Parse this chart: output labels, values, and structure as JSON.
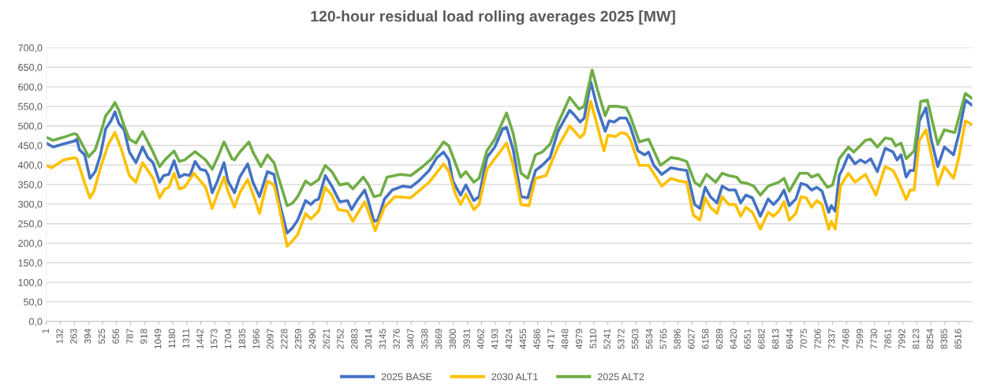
{
  "chart_data": {
    "type": "line",
    "title": "120-hour residual load rolling averages 2025 [MW]",
    "xlim": [
      1,
      8641
    ],
    "xticks": [
      1,
      132,
      263,
      394,
      525,
      656,
      787,
      918,
      1049,
      1180,
      1311,
      1442,
      1573,
      1704,
      1835,
      1966,
      2097,
      2228,
      2359,
      2490,
      2621,
      2752,
      2883,
      3014,
      3145,
      3276,
      3407,
      3538,
      3669,
      3800,
      3931,
      4062,
      4193,
      4324,
      4455,
      4586,
      4717,
      4848,
      4979,
      5110,
      5241,
      5372,
      5503,
      5634,
      5765,
      5896,
      6027,
      6158,
      6289,
      6420,
      6551,
      6682,
      6813,
      6944,
      7075,
      7206,
      7337,
      7468,
      7599,
      7730,
      7861,
      7992,
      8123,
      8254,
      8385,
      8516
    ],
    "ylim": [
      0,
      700
    ],
    "yticks": [
      {
        "value": 0,
        "label": "0,0"
      },
      {
        "value": 50,
        "label": "50,0"
      },
      {
        "value": 100,
        "label": "100,0"
      },
      {
        "value": 150,
        "label": "150,0"
      },
      {
        "value": 200,
        "label": "200,0"
      },
      {
        "value": 250,
        "label": "250,0"
      },
      {
        "value": 300,
        "label": "300,0"
      },
      {
        "value": 350,
        "label": "350,0"
      },
      {
        "value": 400,
        "label": "400,0"
      },
      {
        "value": 450,
        "label": "450,0"
      },
      {
        "value": 500,
        "label": "500,0"
      },
      {
        "value": 550,
        "label": "550,0"
      },
      {
        "value": 600,
        "label": "600,0"
      },
      {
        "value": 650,
        "label": "650,0"
      },
      {
        "value": 700,
        "label": "700,0"
      }
    ],
    "grid": "y",
    "legend": "bottom",
    "marker": "none",
    "line_style": "solid",
    "series": [
      {
        "name": "2025 BASE",
        "color": "#4472c4",
        "x": [
          1,
          65,
          163,
          261,
          285,
          310,
          359,
          408,
          457,
          506,
          555,
          604,
          641,
          678,
          727,
          776,
          837,
          899,
          948,
          997,
          1058,
          1095,
          1144,
          1193,
          1242,
          1291,
          1340,
          1389,
          1438,
          1487,
          1512,
          1549,
          1598,
          1659,
          1696,
          1757,
          1806,
          1880,
          1929,
          1990,
          2064,
          2125,
          2174,
          2248,
          2297,
          2346,
          2420,
          2469,
          2506,
          2542,
          2604,
          2665,
          2739,
          2812,
          2849,
          2910,
          2972,
          3008,
          3058,
          3094,
          3156,
          3229,
          3327,
          3401,
          3475,
          3573,
          3646,
          3708,
          3757,
          3794,
          3867,
          3916,
          3990,
          4039,
          4112,
          4186,
          4260,
          4296,
          4358,
          4431,
          4493,
          4566,
          4628,
          4701,
          4775,
          4885,
          4934,
          4983,
          5020,
          5081,
          5143,
          5216,
          5253,
          5302,
          5351,
          5413,
          5449,
          5523,
          5584,
          5621,
          5670,
          5744,
          5830,
          5903,
          5977,
          6051,
          6100,
          6149,
          6198,
          6259,
          6308,
          6369,
          6431,
          6480,
          6529,
          6590,
          6664,
          6737,
          6787,
          6836,
          6885,
          6934,
          6995,
          7044,
          7093,
          7142,
          7191,
          7240,
          7302,
          7326,
          7363,
          7400,
          7437,
          7486,
          7547,
          7596,
          7645,
          7694,
          7756,
          7829,
          7903,
          7940,
          7977,
          8025,
          8062,
          8099,
          8148,
          8209,
          8258,
          8320,
          8381,
          8467,
          8516,
          8577,
          8641
        ],
        "values": [
          456,
          446,
          454,
          461,
          466,
          439,
          426,
          366,
          383,
          426,
          493,
          513,
          536,
          506,
          490,
          433,
          406,
          446,
          419,
          406,
          356,
          373,
          376,
          411,
          369,
          376,
          373,
          409,
          389,
          386,
          373,
          329,
          359,
          406,
          359,
          329,
          369,
          403,
          356,
          319,
          383,
          376,
          306,
          226,
          239,
          259,
          309,
          299,
          309,
          313,
          373,
          346,
          306,
          309,
          286,
          313,
          336,
          306,
          256,
          259,
          313,
          336,
          346,
          343,
          359,
          386,
          419,
          433,
          413,
          359,
          323,
          349,
          309,
          319,
          419,
          446,
          493,
          496,
          439,
          319,
          316,
          386,
          399,
          419,
          486,
          540,
          526,
          510,
          520,
          613,
          546,
          486,
          513,
          510,
          520,
          520,
          500,
          436,
          426,
          433,
          399,
          376,
          393,
          389,
          386,
          299,
          289,
          343,
          319,
          303,
          346,
          336,
          336,
          303,
          323,
          316,
          269,
          313,
          299,
          313,
          336,
          296,
          313,
          353,
          349,
          336,
          343,
          333,
          279,
          296,
          282,
          373,
          393,
          426,
          403,
          413,
          406,
          416,
          383,
          443,
          433,
          413,
          426,
          369,
          386,
          386,
          513,
          546,
          466,
          396,
          446,
          426,
          479,
          566,
          553
        ]
      },
      {
        "name": "2030 ALT1",
        "color": "#ffc000",
        "x": [
          1,
          52,
          163,
          261,
          285,
          322,
          359,
          408,
          445,
          506,
          580,
          641,
          703,
          776,
          837,
          899,
          997,
          1058,
          1107,
          1144,
          1193,
          1242,
          1291,
          1377,
          1487,
          1549,
          1598,
          1659,
          1696,
          1757,
          1806,
          1880,
          1929,
          1990,
          2064,
          2125,
          2174,
          2248,
          2297,
          2346,
          2420,
          2469,
          2542,
          2604,
          2665,
          2726,
          2812,
          2861,
          2972,
          3070,
          3156,
          3254,
          3401,
          3475,
          3573,
          3708,
          3757,
          3818,
          3867,
          3916,
          3990,
          4039,
          4112,
          4186,
          4296,
          4358,
          4431,
          4505,
          4566,
          4664,
          4775,
          4885,
          4983,
          5020,
          5081,
          5143,
          5204,
          5241,
          5314,
          5364,
          5413,
          5449,
          5535,
          5621,
          5744,
          5830,
          5903,
          5977,
          6038,
          6100,
          6149,
          6198,
          6259,
          6308,
          6369,
          6431,
          6480,
          6529,
          6590,
          6664,
          6737,
          6787,
          6836,
          6885,
          6934,
          6995,
          7044,
          7093,
          7142,
          7191,
          7240,
          7302,
          7326,
          7363,
          7412,
          7486,
          7547,
          7645,
          7743,
          7829,
          7903,
          7952,
          8025,
          8062,
          8099,
          8148,
          8209,
          8320,
          8381,
          8467,
          8516,
          8577,
          8641
        ],
        "values": [
          399,
          393,
          413,
          419,
          416,
          386,
          353,
          316,
          333,
          393,
          453,
          483,
          439,
          373,
          356,
          406,
          366,
          316,
          339,
          343,
          379,
          339,
          343,
          379,
          343,
          289,
          326,
          369,
          333,
          292,
          329,
          363,
          326,
          276,
          359,
          349,
          292,
          192,
          206,
          222,
          276,
          262,
          282,
          343,
          323,
          286,
          282,
          256,
          306,
          232,
          292,
          319,
          316,
          333,
          356,
          403,
          383,
          326,
          299,
          326,
          286,
          299,
          389,
          416,
          456,
          399,
          299,
          296,
          366,
          373,
          446,
          500,
          470,
          480,
          563,
          500,
          436,
          476,
          473,
          483,
          480,
          466,
          399,
          399,
          346,
          366,
          359,
          356,
          272,
          259,
          316,
          292,
          276,
          319,
          299,
          299,
          269,
          292,
          279,
          236,
          279,
          269,
          282,
          306,
          259,
          276,
          319,
          316,
          292,
          309,
          299,
          236,
          256,
          236,
          346,
          379,
          356,
          376,
          323,
          396,
          386,
          359,
          312,
          336,
          336,
          463,
          490,
          349,
          396,
          366,
          419,
          513,
          503
        ]
      },
      {
        "name": "2025 ALT2",
        "color": "#70ad47",
        "x": [
          1,
          65,
          163,
          261,
          285,
          310,
          396,
          457,
          506,
          555,
          604,
          641,
          678,
          727,
          776,
          837,
          899,
          997,
          1058,
          1107,
          1193,
          1242,
          1291,
          1389,
          1487,
          1549,
          1610,
          1659,
          1733,
          1757,
          1806,
          1892,
          1929,
          2003,
          2064,
          2125,
          2248,
          2297,
          2346,
          2420,
          2469,
          2542,
          2604,
          2665,
          2739,
          2812,
          2861,
          2959,
          3008,
          3058,
          3119,
          3180,
          3303,
          3401,
          3499,
          3597,
          3708,
          3757,
          3867,
          3916,
          3990,
          4039,
          4112,
          4186,
          4296,
          4358,
          4431,
          4493,
          4566,
          4628,
          4701,
          4775,
          4885,
          4971,
          5020,
          5094,
          5143,
          5216,
          5253,
          5339,
          5413,
          5449,
          5535,
          5621,
          5732,
          5830,
          5903,
          5977,
          6051,
          6100,
          6161,
          6247,
          6308,
          6369,
          6443,
          6480,
          6541,
          6603,
          6664,
          6737,
          6836,
          6885,
          6934,
          7032,
          7105,
          7142,
          7204,
          7289,
          7339,
          7400,
          7486,
          7535,
          7645,
          7694,
          7756,
          7829,
          7891,
          7927,
          7977,
          8025,
          8099,
          8161,
          8222,
          8320,
          8381,
          8479,
          8577,
          8641
        ],
        "values": [
          471,
          463,
          471,
          480,
          478,
          466,
          421,
          439,
          480,
          526,
          543,
          560,
          540,
          500,
          466,
          456,
          485,
          433,
          396,
          413,
          436,
          409,
          413,
          434,
          413,
          389,
          426,
          459,
          416,
          413,
          433,
          459,
          433,
          396,
          426,
          406,
          296,
          302,
          319,
          359,
          349,
          363,
          399,
          383,
          349,
          353,
          339,
          369,
          349,
          319,
          323,
          369,
          376,
          373,
          393,
          416,
          459,
          449,
          369,
          383,
          356,
          366,
          436,
          466,
          533,
          480,
          379,
          366,
          426,
          433,
          453,
          506,
          573,
          543,
          550,
          643,
          593,
          526,
          550,
          550,
          546,
          526,
          459,
          466,
          399,
          419,
          416,
          409,
          356,
          346,
          376,
          356,
          379,
          373,
          369,
          356,
          353,
          346,
          323,
          346,
          356,
          366,
          333,
          379,
          379,
          369,
          376,
          343,
          349,
          416,
          446,
          433,
          463,
          466,
          446,
          469,
          466,
          449,
          456,
          416,
          436,
          563,
          566,
          453,
          490,
          483,
          583,
          570
        ]
      }
    ]
  }
}
